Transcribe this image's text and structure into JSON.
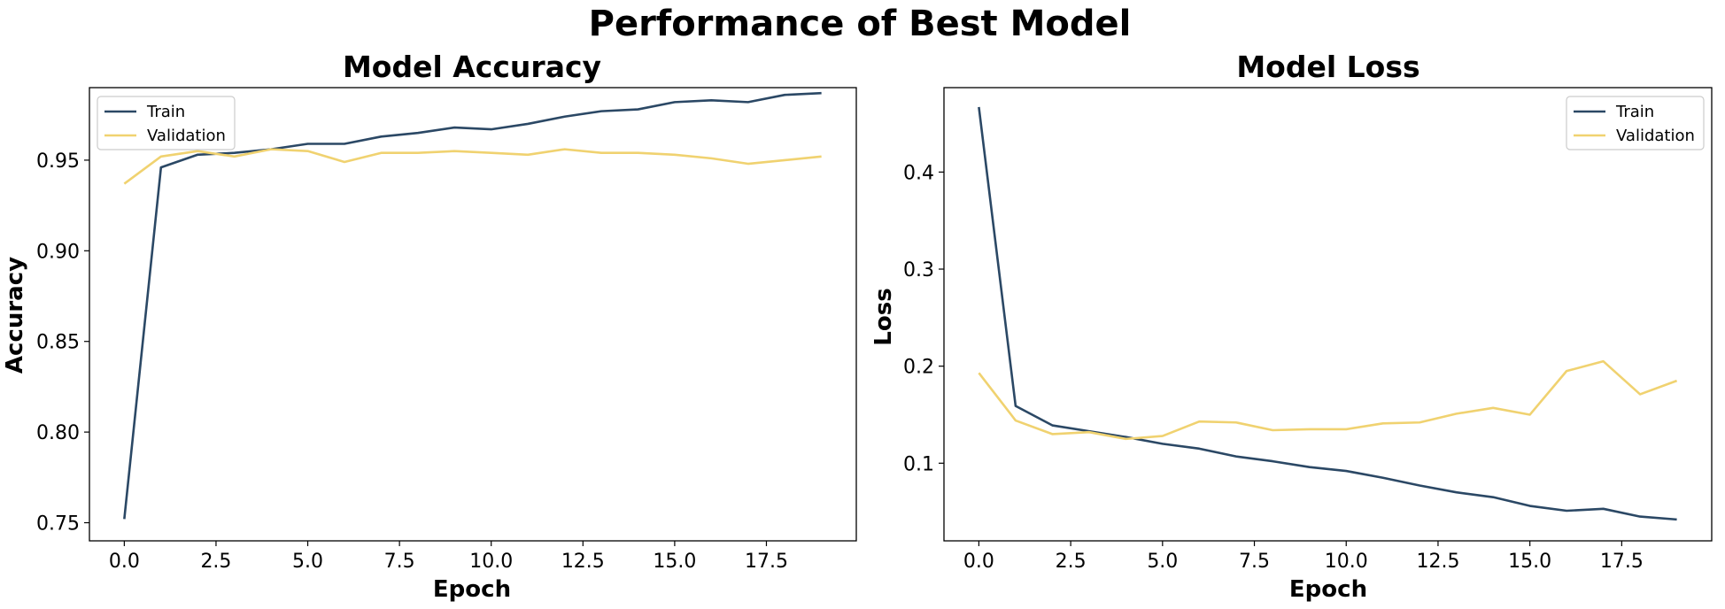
{
  "figure": {
    "title": "Performance of Best Model"
  },
  "colors": {
    "train": "#2b4865",
    "validation": "#f0d270"
  },
  "chart_data": [
    {
      "type": "line",
      "title": "Model Accuracy",
      "xlabel": "Epoch",
      "ylabel": "Accuracy",
      "xlim": [
        -0.95,
        19.95
      ],
      "ylim": [
        0.74,
        0.99
      ],
      "xticks": [
        0,
        2.5,
        5,
        7.5,
        10,
        12.5,
        15,
        17.5
      ],
      "xtick_labels": [
        "0.0",
        "2.5",
        "5.0",
        "7.5",
        "10.0",
        "12.5",
        "15.0",
        "17.5"
      ],
      "yticks": [
        0.75,
        0.8,
        0.85,
        0.9,
        0.95
      ],
      "ytick_labels": [
        "0.75",
        "0.80",
        "0.85",
        "0.90",
        "0.95"
      ],
      "legend_position": "upper left",
      "x": [
        0,
        1,
        2,
        3,
        4,
        5,
        6,
        7,
        8,
        9,
        10,
        11,
        12,
        13,
        14,
        15,
        16,
        17,
        18,
        19
      ],
      "series": [
        {
          "name": "Train",
          "color": "#2b4865",
          "values": [
            0.752,
            0.946,
            0.953,
            0.954,
            0.956,
            0.959,
            0.959,
            0.963,
            0.965,
            0.968,
            0.967,
            0.97,
            0.974,
            0.977,
            0.978,
            0.982,
            0.983,
            0.982,
            0.986,
            0.987
          ]
        },
        {
          "name": "Validation",
          "color": "#f0d270",
          "values": [
            0.937,
            0.952,
            0.955,
            0.952,
            0.956,
            0.955,
            0.949,
            0.954,
            0.954,
            0.955,
            0.954,
            0.953,
            0.956,
            0.954,
            0.954,
            0.953,
            0.951,
            0.948,
            0.95,
            0.952
          ]
        }
      ]
    },
    {
      "type": "line",
      "title": "Model Loss",
      "xlabel": "Epoch",
      "ylabel": "Loss",
      "xlim": [
        -0.95,
        19.95
      ],
      "ylim": [
        0.02,
        0.487
      ],
      "xticks": [
        0,
        2.5,
        5,
        7.5,
        10,
        12.5,
        15,
        17.5
      ],
      "xtick_labels": [
        "0.0",
        "2.5",
        "5.0",
        "7.5",
        "10.0",
        "12.5",
        "15.0",
        "17.5"
      ],
      "yticks": [
        0.1,
        0.2,
        0.3,
        0.4
      ],
      "ytick_labels": [
        "0.1",
        "0.2",
        "0.3",
        "0.4"
      ],
      "legend_position": "upper right",
      "x": [
        0,
        1,
        2,
        3,
        4,
        5,
        6,
        7,
        8,
        9,
        10,
        11,
        12,
        13,
        14,
        15,
        16,
        17,
        18,
        19
      ],
      "series": [
        {
          "name": "Train",
          "color": "#2b4865",
          "values": [
            0.467,
            0.159,
            0.139,
            0.133,
            0.127,
            0.12,
            0.115,
            0.107,
            0.102,
            0.096,
            0.092,
            0.085,
            0.077,
            0.07,
            0.065,
            0.056,
            0.051,
            0.053,
            0.045,
            0.042
          ]
        },
        {
          "name": "Validation",
          "color": "#f0d270",
          "values": [
            0.193,
            0.144,
            0.13,
            0.132,
            0.125,
            0.128,
            0.143,
            0.142,
            0.134,
            0.135,
            0.135,
            0.141,
            0.142,
            0.151,
            0.157,
            0.15,
            0.195,
            0.205,
            0.171,
            0.185
          ]
        }
      ]
    }
  ]
}
